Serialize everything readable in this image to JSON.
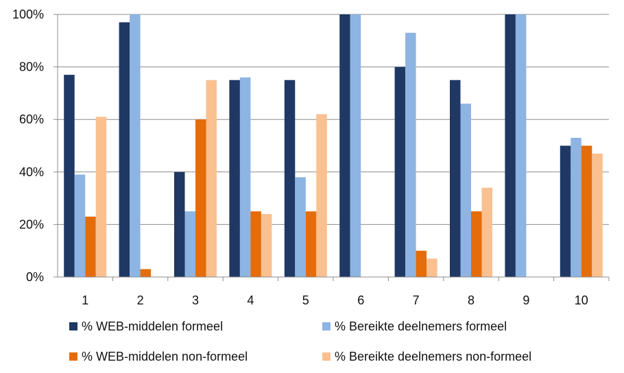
{
  "chart_data": {
    "type": "bar",
    "categories": [
      "1",
      "2",
      "3",
      "4",
      "5",
      "6",
      "7",
      "8",
      "9",
      "10"
    ],
    "series": [
      {
        "name": "% WEB-middelen formeel",
        "color": "#1F3864",
        "values": [
          77,
          97,
          40,
          75,
          75,
          100,
          80,
          75,
          100,
          50
        ]
      },
      {
        "name": "% Bereikte deelnemers formeel",
        "color": "#8DB4E2",
        "values": [
          39,
          100,
          25,
          76,
          38,
          100,
          93,
          66,
          100,
          53
        ]
      },
      {
        "name": "% WEB-middelen non-formeel",
        "color": "#E46C0A",
        "values": [
          23,
          3,
          60,
          25,
          25,
          0,
          10,
          25,
          0,
          50
        ]
      },
      {
        "name": "% Bereikte deelnemers non-formeel",
        "color": "#FAC090",
        "values": [
          61,
          0,
          75,
          24,
          62,
          0,
          7,
          34,
          0,
          47
        ]
      }
    ],
    "ylim": [
      0,
      100
    ],
    "yticks": [
      0,
      20,
      40,
      60,
      80,
      100
    ],
    "ytick_labels": [
      "0%",
      "20%",
      "40%",
      "60%",
      "80%",
      "100%"
    ],
    "grid": true,
    "legend_position": "bottom",
    "title": "",
    "xlabel": "",
    "ylabel": ""
  }
}
